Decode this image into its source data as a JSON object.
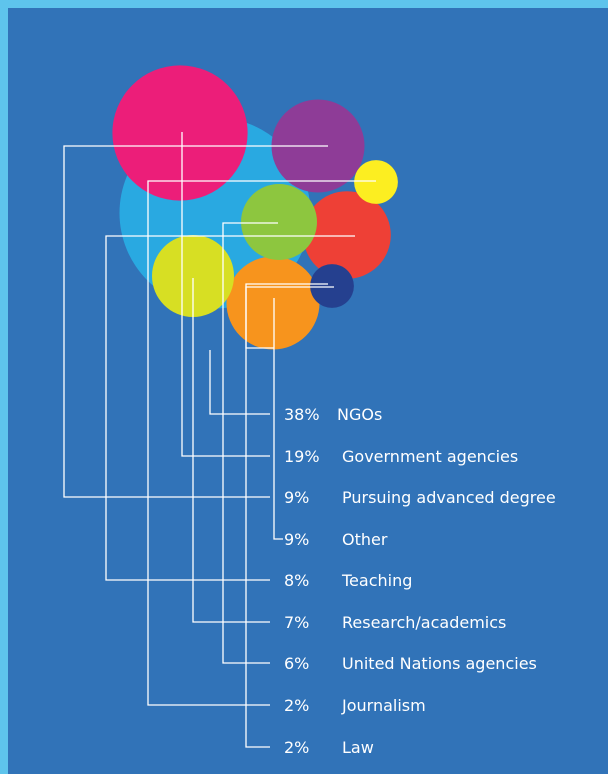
{
  "chart_data": {
    "type": "bubble",
    "categories": [
      "NGOs",
      "Government agencies",
      "Pursuing advanced degree",
      "Other",
      "Teaching",
      "Research/academics",
      "United Nations agencies",
      "Journalism",
      "Law"
    ],
    "values": [
      38,
      19,
      9,
      9,
      8,
      7,
      6,
      2,
      2
    ],
    "labels": [
      {
        "pct": "38%",
        "text": "NGOs"
      },
      {
        "pct": "19%",
        "text": "Government agencies"
      },
      {
        "pct": "9%",
        "text": "Pursuing advanced degree"
      },
      {
        "pct": "9%",
        "text": "Other"
      },
      {
        "pct": "8%",
        "text": "Teaching"
      },
      {
        "pct": "7%",
        "text": "Research/academics"
      },
      {
        "pct": "6%",
        "text": "United Nations agencies"
      },
      {
        "pct": "2%",
        "text": "Journalism"
      },
      {
        "pct": "2%",
        "text": "Law"
      }
    ],
    "colors": [
      "#29a9e1",
      "#ec1e79",
      "#8e3c97",
      "#ffffff",
      "#ee4036",
      "#d7df23",
      "#8dc63f",
      "#fcee21",
      "#25408f"
    ]
  },
  "colors": {
    "page_background": "#5ec4ec",
    "panel_background": "#3173b8",
    "leader_lines": "#ffffff"
  }
}
